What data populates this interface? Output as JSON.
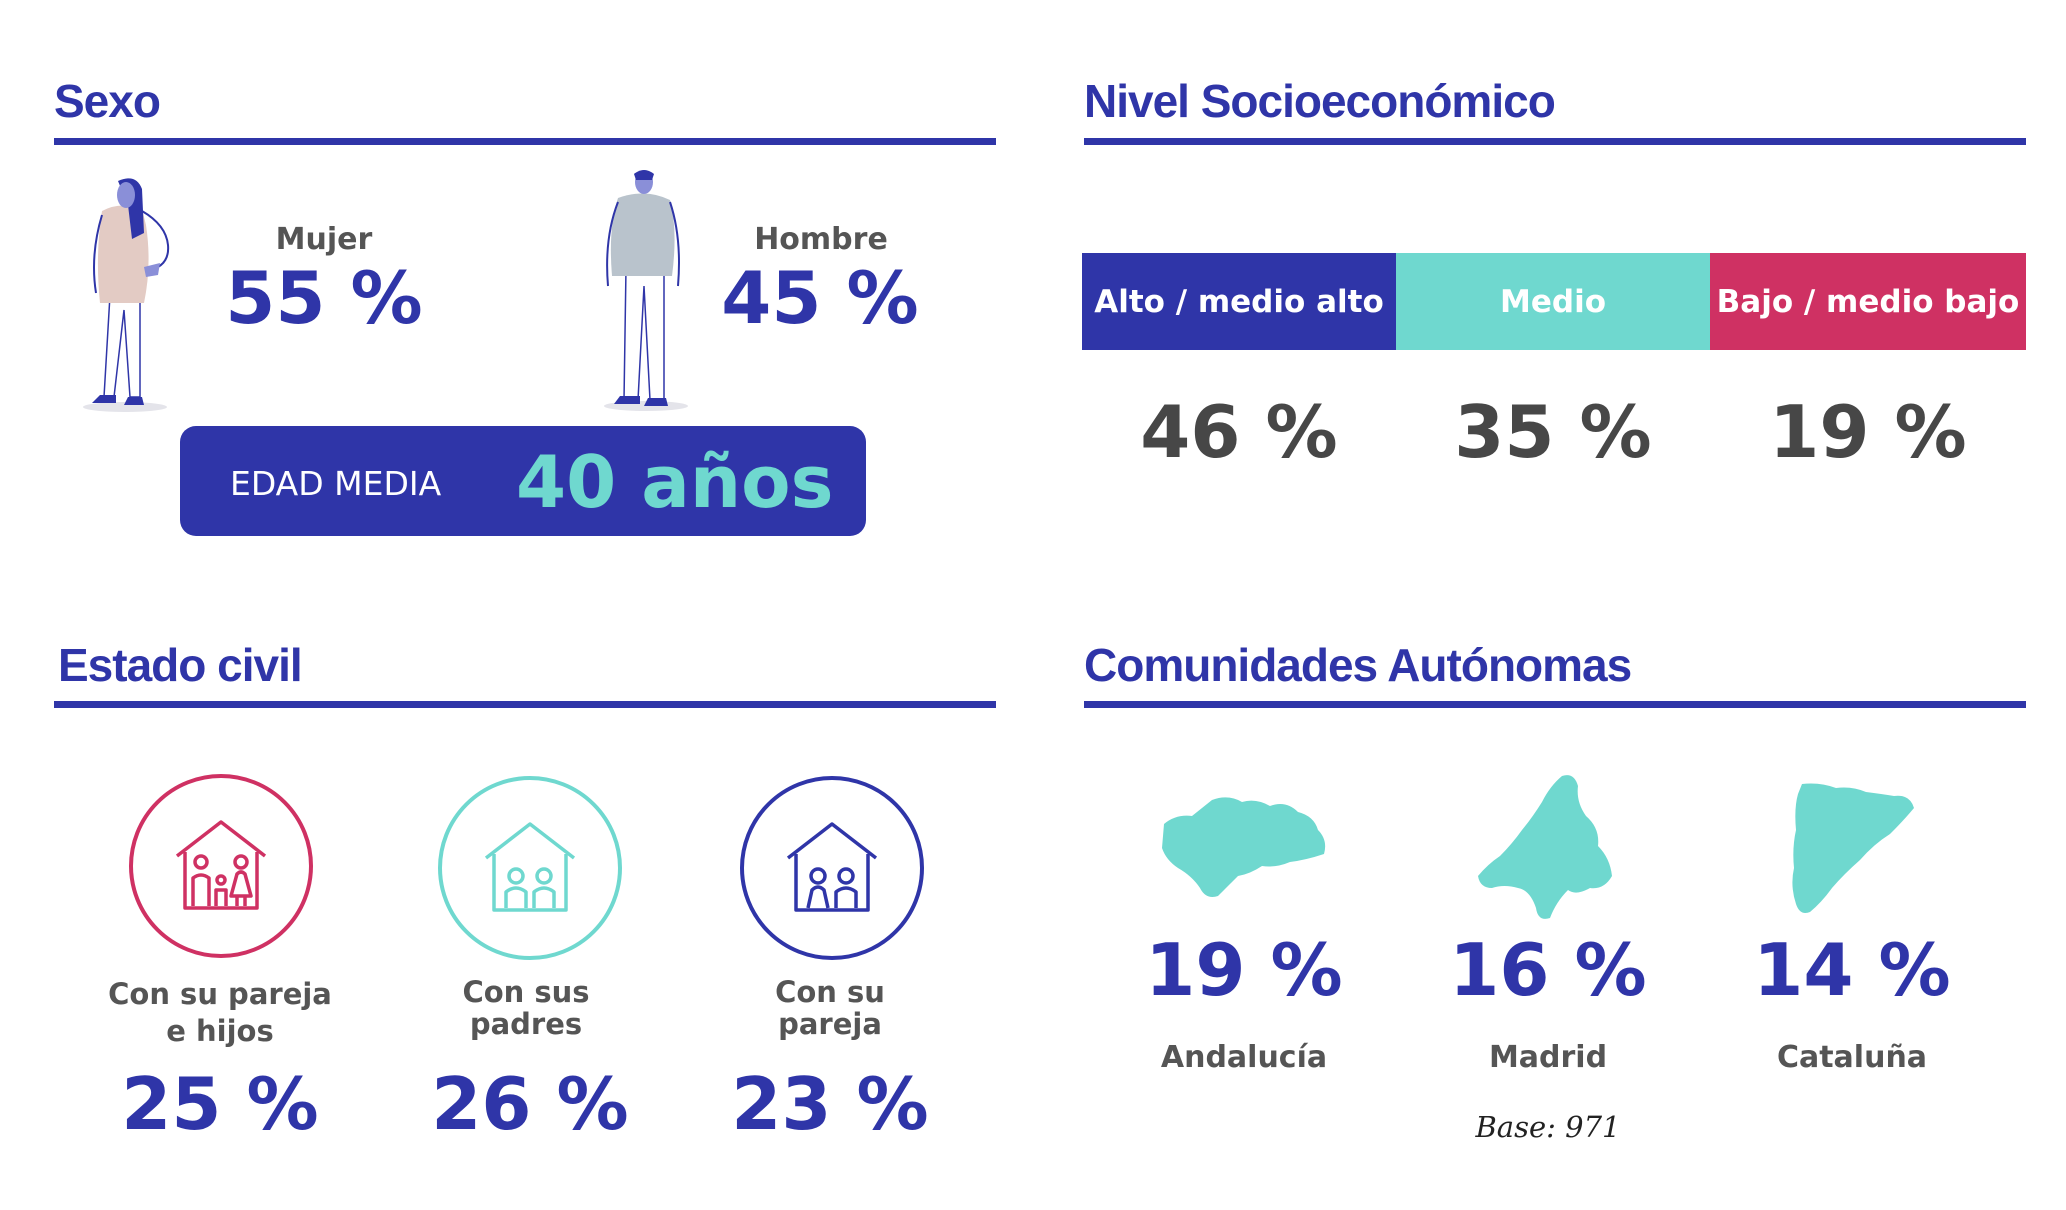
{
  "sexo": {
    "title": "Sexo",
    "mujer": {
      "label": "Mujer",
      "value": "55 %"
    },
    "hombre": {
      "label": "Hombre",
      "value": "45 %"
    },
    "edad": {
      "label": "EDAD MEDIA",
      "value": "40 años"
    }
  },
  "nivel": {
    "title": "Nivel Socioeconómico",
    "segments": [
      {
        "label": "Alto / medio alto",
        "value": "46 %",
        "color": "#2f35a8",
        "share": 33.3
      },
      {
        "label": "Medio",
        "value": "35 %",
        "color": "#6fd8cf",
        "share": 33.3
      },
      {
        "label": "Bajo / medio bajo",
        "value": "19 %",
        "color": "#cf3163",
        "share": 33.4
      }
    ]
  },
  "estado": {
    "title": "Estado civil",
    "items": [
      {
        "label_line1": "Con su pareja",
        "label_line2": "e hijos",
        "value": "25 %",
        "color": "#cf3163",
        "icon": "family-house-icon"
      },
      {
        "label_line1": "Con sus",
        "label_line2": "padres",
        "value": "26 %",
        "color": "#6fd8cf",
        "icon": "parents-house-icon"
      },
      {
        "label_line1": "Con su",
        "label_line2": "pareja",
        "value": "23 %",
        "color": "#2f35a8",
        "icon": "couple-house-icon"
      }
    ]
  },
  "comunidades": {
    "title": "Comunidades Autónomas",
    "items": [
      {
        "label": "Andalucía",
        "value": "19 %",
        "icon": "andalucia-map-icon"
      },
      {
        "label": "Madrid",
        "value": "16 %",
        "icon": "madrid-map-icon"
      },
      {
        "label": "Cataluña",
        "value": "14 %",
        "icon": "cataluna-map-icon"
      }
    ],
    "base": "Base: 971"
  },
  "colors": {
    "primary": "#2f35a8",
    "teal": "#6fd8cf",
    "pink": "#cf3163",
    "gray": "#4a4a4a"
  }
}
